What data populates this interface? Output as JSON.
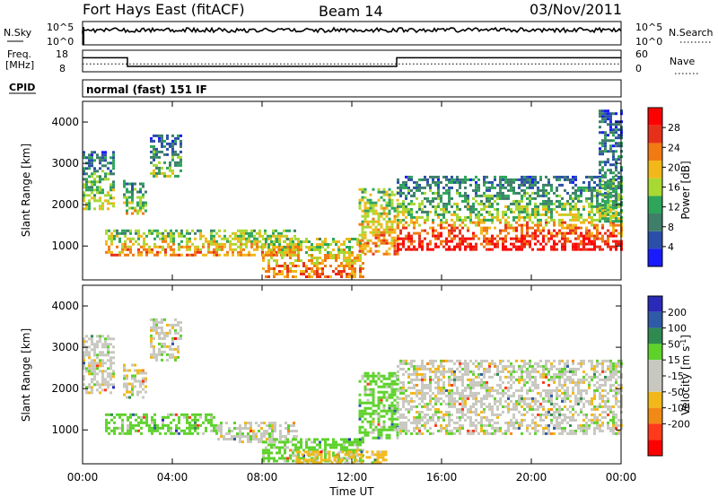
{
  "header": {
    "station": "Fort Hays East (fitACF)",
    "beam": "Beam 14",
    "date": "03/Nov/2011"
  },
  "strip1": {
    "left_label": "N.Sky",
    "right_label": "N.Search",
    "left_ticks": [
      "10^5",
      "10^0"
    ],
    "right_ticks": [
      "10^5",
      "10^0"
    ]
  },
  "strip2": {
    "left_label_top": "Freq.",
    "left_label_bottom": "[MHz]",
    "right_label": "Nave",
    "left_ticks": [
      "18",
      "8"
    ],
    "right_ticks": [
      "60",
      "0"
    ],
    "freq_segments": [
      {
        "start_h": 0.0,
        "end_h": 2.0,
        "mhz": 14.5
      },
      {
        "start_h": 2.0,
        "end_h": 14.0,
        "mhz": 10.5
      },
      {
        "start_h": 14.0,
        "end_h": 24.0,
        "mhz": 14.5
      }
    ],
    "nave_value": 22
  },
  "cpid": {
    "label": "CPID",
    "text": "normal (fast) 151 IF"
  },
  "xaxis": {
    "label": "Time UT",
    "range_h": [
      0,
      24
    ],
    "tick_labels": [
      "00:00",
      "04:00",
      "08:00",
      "12:00",
      "16:00",
      "20:00",
      "00:00"
    ],
    "tick_hours": [
      0,
      4,
      8,
      12,
      16,
      20,
      24
    ]
  },
  "power_panel": {
    "ylabel": "Slant Range [km]",
    "ylim_km": [
      180,
      4500
    ],
    "yticks": [
      "1000",
      "2000",
      "3000",
      "4000"
    ],
    "ytick_values": [
      1000,
      2000,
      3000,
      4000
    ],
    "colorbar_label": "Power [dB]",
    "colorbar_ticks": [
      "4",
      "8",
      "12",
      "16",
      "20",
      "24",
      "28"
    ],
    "colorbar_tick_values": [
      4,
      8,
      12,
      16,
      20,
      24,
      28
    ],
    "colorbar_range": [
      0,
      32
    ],
    "colorbar_colors": [
      "#1a1aff",
      "#2b4fa8",
      "#3e7e6a",
      "#2ea55a",
      "#a8d832",
      "#f2b81a",
      "#f17a12",
      "#e6301a",
      "#ff0000"
    ]
  },
  "velocity_panel": {
    "ylabel": "Slant Range [km]",
    "ylim_km": [
      180,
      4500
    ],
    "yticks": [
      "1000",
      "2000",
      "3000",
      "4000"
    ],
    "ytick_values": [
      1000,
      2000,
      3000,
      4000
    ],
    "colorbar_label": "Velocity [m s",
    "colorbar_label_sup": "-1",
    "colorbar_label_end": "]",
    "colorbar_ticks": [
      "200",
      "100",
      "50",
      "15",
      "-15",
      "-50",
      "-100",
      "-200"
    ],
    "colorbar_colors": [
      "#2a2ab8",
      "#2f5aa5",
      "#2f8a50",
      "#5ed22b",
      "#c8c8c0",
      "#c8c8c0",
      "#f2b81a",
      "#f18a14",
      "#ff3a1a",
      "#ff0000"
    ]
  },
  "chart_data": [
    {
      "type": "heatmap",
      "panel": "power",
      "x_unit": "hours UT",
      "y_unit": "km",
      "value_unit": "dB",
      "regions": [
        {
          "t0": 0.0,
          "t1": 1.4,
          "r0": 1900,
          "r1": 3300,
          "p": 10
        },
        {
          "t0": 1.8,
          "t1": 2.8,
          "r0": 1800,
          "r1": 2600,
          "p": 11
        },
        {
          "t0": 3.0,
          "t1": 4.4,
          "r0": 2700,
          "r1": 3700,
          "p": 9
        },
        {
          "t0": 1.0,
          "t1": 9.5,
          "r0": 800,
          "r1": 1400,
          "p": 16
        },
        {
          "t0": 8.0,
          "t1": 12.5,
          "r0": 250,
          "r1": 1200,
          "p": 18
        },
        {
          "t0": 12.3,
          "t1": 14.0,
          "r0": 800,
          "r1": 2400,
          "p": 17
        },
        {
          "t0": 14.0,
          "t1": 24.0,
          "r0": 900,
          "r1": 1600,
          "p": 24
        },
        {
          "t0": 14.0,
          "t1": 24.0,
          "r0": 1600,
          "r1": 2700,
          "p": 10
        },
        {
          "t0": 23.0,
          "t1": 24.0,
          "r0": 1600,
          "r1": 4300,
          "p": 8
        }
      ]
    },
    {
      "type": "heatmap",
      "panel": "velocity",
      "x_unit": "hours UT",
      "y_unit": "km",
      "value_unit": "m s-1",
      "regions": [
        {
          "t0": 0.0,
          "t1": 1.4,
          "r0": 1900,
          "r1": 3300,
          "v": 0
        },
        {
          "t0": 1.8,
          "t1": 2.8,
          "r0": 1800,
          "r1": 2600,
          "v": 0
        },
        {
          "t0": 3.0,
          "t1": 4.4,
          "r0": 2700,
          "r1": 3700,
          "v": 0
        },
        {
          "t0": 1.0,
          "t1": 6.0,
          "r0": 900,
          "r1": 1400,
          "v": 30
        },
        {
          "t0": 6.0,
          "t1": 9.5,
          "r0": 700,
          "r1": 1200,
          "v": 0
        },
        {
          "t0": 8.0,
          "t1": 12.5,
          "r0": 250,
          "r1": 800,
          "v": 30
        },
        {
          "t0": 12.3,
          "t1": 14.0,
          "r0": 800,
          "r1": 2400,
          "v": 30
        },
        {
          "t0": 14.0,
          "t1": 24.0,
          "r0": 900,
          "r1": 2700,
          "v": 0
        },
        {
          "t0": 9.5,
          "t1": 13.5,
          "r0": 180,
          "r1": 500,
          "v": -30
        }
      ]
    },
    {
      "type": "line",
      "panel": "frequency",
      "x_unit": "hours UT",
      "y_unit": "MHz",
      "x": [
        0,
        2,
        2,
        14,
        14,
        24
      ],
      "y": [
        14.5,
        14.5,
        10.5,
        10.5,
        14.5,
        14.5
      ]
    }
  ]
}
